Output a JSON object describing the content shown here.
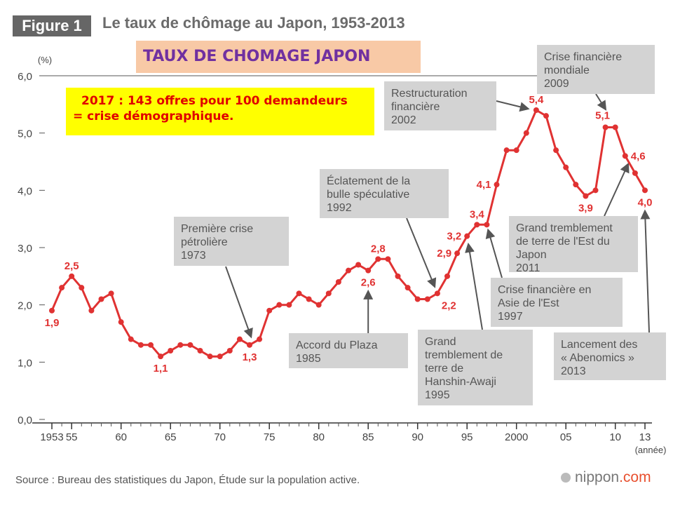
{
  "header": {
    "figure_label": "Figure 1",
    "title": "Le taux de chômage au Japon, 1953-2013"
  },
  "overlay_title": "TAUX DE CHOMAGE JAPON",
  "note": {
    "line1": "2017 : 143 offres pour 100 demandeurs",
    "line2": "= crise démographique."
  },
  "chart_data": {
    "type": "line",
    "title": "Le taux de chômage au Japon, 1953-2013",
    "ylabel": "(%)",
    "xlabel": "(année)",
    "ylim": [
      0,
      6
    ],
    "xlim": [
      1953,
      2013
    ],
    "grid": false,
    "color": "#e03232",
    "y_ticks": [
      "0,0",
      "1,0",
      "2,0",
      "3,0",
      "4,0",
      "5,0",
      "6,0"
    ],
    "y_tick_values": [
      0,
      1,
      2,
      3,
      4,
      5,
      6
    ],
    "x_ticks": [
      "1953",
      "55",
      "60",
      "65",
      "70",
      "75",
      "80",
      "85",
      "90",
      "95",
      "2000",
      "05",
      "10",
      "13"
    ],
    "x_tick_values": [
      1953,
      1955,
      1960,
      1965,
      1970,
      1975,
      1980,
      1985,
      1990,
      1995,
      2000,
      2005,
      2010,
      2013
    ],
    "series": [
      {
        "name": "Taux de chômage",
        "x": [
          1953,
          1954,
          1955,
          1956,
          1957,
          1958,
          1959,
          1960,
          1961,
          1962,
          1963,
          1964,
          1965,
          1966,
          1967,
          1968,
          1969,
          1970,
          1971,
          1972,
          1973,
          1974,
          1975,
          1976,
          1977,
          1978,
          1979,
          1980,
          1981,
          1982,
          1983,
          1984,
          1985,
          1986,
          1987,
          1988,
          1989,
          1990,
          1991,
          1992,
          1993,
          1994,
          1995,
          1996,
          1997,
          1998,
          1999,
          2000,
          2001,
          2002,
          2003,
          2004,
          2005,
          2006,
          2007,
          2008,
          2009,
          2010,
          2011,
          2012,
          2013
        ],
        "values": [
          1.9,
          2.3,
          2.5,
          2.3,
          1.9,
          2.1,
          2.2,
          1.7,
          1.4,
          1.3,
          1.3,
          1.1,
          1.2,
          1.3,
          1.3,
          1.2,
          1.1,
          1.1,
          1.2,
          1.4,
          1.3,
          1.4,
          1.9,
          2.0,
          2.0,
          2.2,
          2.1,
          2.0,
          2.2,
          2.4,
          2.6,
          2.7,
          2.6,
          2.8,
          2.8,
          2.5,
          2.3,
          2.1,
          2.1,
          2.2,
          2.5,
          2.9,
          3.2,
          3.4,
          3.4,
          4.1,
          4.7,
          4.7,
          5.0,
          5.4,
          5.3,
          4.7,
          4.4,
          4.1,
          3.9,
          4.0,
          5.1,
          5.1,
          4.6,
          4.3,
          4.0
        ]
      }
    ],
    "data_labels": [
      {
        "year": 1953,
        "value": 1.9,
        "text": "1,9",
        "pos": "below"
      },
      {
        "year": 1955,
        "value": 2.5,
        "text": "2,5",
        "pos": "above"
      },
      {
        "year": 1964,
        "value": 1.1,
        "text": "1,1",
        "pos": "below"
      },
      {
        "year": 1973,
        "value": 1.3,
        "text": "1,3",
        "pos": "below"
      },
      {
        "year": 1985,
        "value": 2.6,
        "text": "2,6",
        "pos": "below"
      },
      {
        "year": 1986,
        "value": 2.8,
        "text": "2,8",
        "pos": "above"
      },
      {
        "year": 1992,
        "value": 2.2,
        "text": "2,2",
        "pos": "below-right"
      },
      {
        "year": 1994,
        "value": 2.9,
        "text": "2,9",
        "pos": "left"
      },
      {
        "year": 1995,
        "value": 3.2,
        "text": "3,2",
        "pos": "left"
      },
      {
        "year": 1996,
        "value": 3.4,
        "text": "3,4",
        "pos": "above"
      },
      {
        "year": 1998,
        "value": 4.1,
        "text": "4,1",
        "pos": "left"
      },
      {
        "year": 2002,
        "value": 5.4,
        "text": "5,4",
        "pos": "above"
      },
      {
        "year": 2009,
        "value": 5.1,
        "text": "5,1",
        "pos": "above-left"
      },
      {
        "year": 2007,
        "value": 3.9,
        "text": "3,9",
        "pos": "below"
      },
      {
        "year": 2011,
        "value": 4.6,
        "text": "4,6",
        "pos": "right"
      },
      {
        "year": 2013,
        "value": 4.0,
        "text": "4,0",
        "pos": "below"
      }
    ],
    "annotations": [
      {
        "id": "crise-petroliere",
        "text": "Première crise\npétrolière\n1973"
      },
      {
        "id": "accord-plaza",
        "text": "Accord du Plaza\n1985"
      },
      {
        "id": "bulle",
        "text": "Éclatement de la\nbulle spéculative\n1992"
      },
      {
        "id": "hanshin",
        "text": "Grand\ntremblement de\nterre de\nHanshin-Awaji\n1995"
      },
      {
        "id": "asie",
        "text": "Crise financière en\nAsie de l'Est\n1997"
      },
      {
        "id": "restructuration",
        "text": "Restructuration\nfinancière\n2002"
      },
      {
        "id": "crise-mondiale",
        "text": "Crise financière\nmondiale\n2009"
      },
      {
        "id": "tremblement-est",
        "text": "Grand tremblement\nde terre de l'Est du\nJapon\n2011"
      },
      {
        "id": "abenomics",
        "text": "Lancement des\n« Abenomics »\n2013"
      }
    ]
  },
  "footer": {
    "source": "Source : Bureau des statistiques du Japon, Étude sur la population active.",
    "logo_name": "nippon",
    "logo_domain": ".com"
  }
}
